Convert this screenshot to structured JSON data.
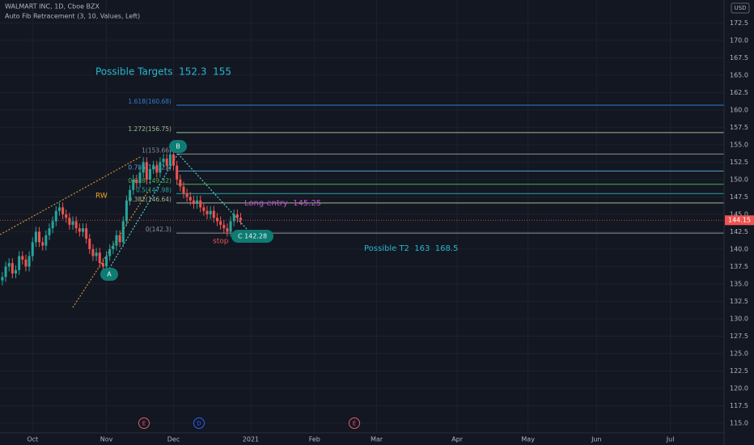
{
  "chart_data": {
    "type": "candlestick",
    "title": "WALMART INC, 1D, Cboe BZX",
    "subtitle": "Auto Fib Retracement (3, 10, Values, Left)",
    "currency": "USD",
    "up_color": "#26a69a",
    "down_color": "#ef5350",
    "open": [
      135.5,
      136,
      137.5,
      138,
      136.5,
      137,
      139,
      138.5,
      137.5,
      139,
      141,
      142.5,
      141,
      140.5,
      142,
      143,
      144,
      145.5,
      146,
      145,
      144.5,
      143.5,
      144,
      143,
      142.5,
      143,
      141.5,
      140,
      139,
      139.5,
      138,
      137.5,
      139,
      140,
      140.5,
      142,
      141,
      144,
      147,
      148.5,
      150,
      149.5,
      151,
      152.5,
      150,
      151.5,
      152,
      151,
      152.5,
      153,
      152,
      153.6,
      152,
      150,
      149,
      148,
      147.5,
      147,
      146.5,
      147,
      146,
      145.5,
      145,
      145.5,
      144.5,
      144,
      143.5,
      143,
      142.5,
      144,
      145,
      144.5
    ],
    "high": [
      136.7,
      138.2,
      138.7,
      138.7,
      137.7,
      139.7,
      139.7,
      139.2,
      139.7,
      141.7,
      143.2,
      143.2,
      141.7,
      142.7,
      143.7,
      144.7,
      146.2,
      146.7,
      146.7,
      145.7,
      145.2,
      144.7,
      144.7,
      143.7,
      143.7,
      143.7,
      142.2,
      140.7,
      140.2,
      140.2,
      138.7,
      139.7,
      140.7,
      141.2,
      142.7,
      142.7,
      144.7,
      147.7,
      149.2,
      150.7,
      150.7,
      151.7,
      153.2,
      153.2,
      152.2,
      152.7,
      152.7,
      153.2,
      153.7,
      153.7,
      154.3,
      154.3,
      152.7,
      150.7,
      149.7,
      148.7,
      148.2,
      147.7,
      147.7,
      147.7,
      146.7,
      146.2,
      146.2,
      146.2,
      145.2,
      144.7,
      144.2,
      143.7,
      144.7,
      145.7,
      145.7,
      145.2
    ],
    "low": [
      134.8,
      135.3,
      136.8,
      135.8,
      135.8,
      136.3,
      137.8,
      136.8,
      136.8,
      138.3,
      140.3,
      140.3,
      139.8,
      139.8,
      141.3,
      142.3,
      143.3,
      144.8,
      144.3,
      143.8,
      142.8,
      142.8,
      142.3,
      141.8,
      141.8,
      140.8,
      139.3,
      138.3,
      138.3,
      137.3,
      136.8,
      136.8,
      138.3,
      139.3,
      139.8,
      140.3,
      140.3,
      143.3,
      146.3,
      147.8,
      148.8,
      148.8,
      150.3,
      149.3,
      149.3,
      150.8,
      150.3,
      150.3,
      151.8,
      151.3,
      151.3,
      151.3,
      149.3,
      148.3,
      147.3,
      146.8,
      146.3,
      145.8,
      145.8,
      145.3,
      144.8,
      144.3,
      144.3,
      143.8,
      143.3,
      142.8,
      142.3,
      141.8,
      141.8,
      143.3,
      143.8,
      143.5
    ],
    "close": [
      136,
      137.5,
      138,
      136.5,
      137,
      139,
      138.5,
      137.5,
      139,
      141,
      142.5,
      141,
      140.5,
      142,
      143,
      144,
      145.5,
      146,
      145,
      144.5,
      143.5,
      144,
      143,
      142.5,
      143,
      141.5,
      140,
      139,
      139.5,
      138,
      137.5,
      139,
      140,
      140.5,
      142,
      141,
      144,
      147,
      148.5,
      150,
      149.5,
      151,
      152.5,
      150,
      151.5,
      152,
      151,
      152.5,
      153,
      152,
      153.6,
      152,
      150,
      149,
      148,
      147.5,
      147,
      146.5,
      147,
      146,
      145.5,
      145,
      145.5,
      144.5,
      144,
      143.5,
      143,
      142.5,
      144,
      145,
      144.5,
      144.15
    ],
    "xlim": [
      -0.7,
      215
    ],
    "xticks": [
      {
        "value": 9,
        "label": "Oct"
      },
      {
        "value": 31,
        "label": "Nov"
      },
      {
        "value": 51,
        "label": "Dec"
      },
      {
        "value": 74,
        "label": "2021"
      },
      {
        "value": 93,
        "label": "Feb"
      },
      {
        "value": 111.5,
        "label": "Mar"
      },
      {
        "value": 135.5,
        "label": "Apr"
      },
      {
        "value": 156.6,
        "label": "May"
      },
      {
        "value": 177,
        "label": "Jun"
      },
      {
        "value": 199,
        "label": "Jul"
      }
    ],
    "ylim": [
      113.6,
      175.8
    ],
    "yticks": [
      {
        "value": 115,
        "label": "115.0"
      },
      {
        "value": 117.5,
        "label": "117.5"
      },
      {
        "value": 120,
        "label": "120.0"
      },
      {
        "value": 122.5,
        "label": "122.5"
      },
      {
        "value": 125,
        "label": "125.0"
      },
      {
        "value": 127.5,
        "label": "127.5"
      },
      {
        "value": 130,
        "label": "130.0"
      },
      {
        "value": 132.5,
        "label": "132.5"
      },
      {
        "value": 135,
        "label": "135.0"
      },
      {
        "value": 137.5,
        "label": "137.5"
      },
      {
        "value": 140,
        "label": "140.0"
      },
      {
        "value": 142.5,
        "label": "142.5"
      },
      {
        "value": 145,
        "label": "145.0"
      },
      {
        "value": 147.5,
        "label": "147.5"
      },
      {
        "value": 150,
        "label": "150.0"
      },
      {
        "value": 152.5,
        "label": "152.5"
      },
      {
        "value": 155,
        "label": "155.0"
      },
      {
        "value": 157.5,
        "label": "157.5"
      },
      {
        "value": 160,
        "label": "160.0"
      },
      {
        "value": 162.5,
        "label": "162.5"
      },
      {
        "value": 165,
        "label": "165.0"
      },
      {
        "value": 167.5,
        "label": "167.5"
      },
      {
        "value": 170,
        "label": "170.0"
      },
      {
        "value": 172.5,
        "label": "172.5"
      }
    ],
    "grid": true,
    "fib_levels": [
      {
        "label": "1.618(160.68)",
        "value": 160.68,
        "color": "#2f7fd0"
      },
      {
        "label": "1.272(156.75)",
        "value": 156.75,
        "color": "#9fbf8f"
      },
      {
        "label": "1(153.66)",
        "value": 153.66,
        "color": "#8a8f99"
      },
      {
        "label": "0.786(151.23)",
        "value": 151.23,
        "color": "#5a9fd0"
      },
      {
        "label": "0.618(149.32)",
        "value": 149.32,
        "color": "#4caf50"
      },
      {
        "label": "0.5(147.98)",
        "value": 147.98,
        "color": "#26a69a"
      },
      {
        "label": "0.382(146.64)",
        "value": 146.64,
        "color": "#a0b890"
      },
      {
        "label": "0(142.3)",
        "value": 142.3,
        "color": "#8a8f99"
      }
    ],
    "annotations": [
      {
        "text": "Possible Targets  152.3  155",
        "color": "#26b6d0"
      },
      {
        "text": "Possible T2  163  168.5",
        "color": "#26b6d0"
      },
      {
        "text": "Long entry  145.25",
        "color": "#c04fc8"
      },
      {
        "text": "RW",
        "color": "#f5a623"
      },
      {
        "text": "stop",
        "color": "#ef5350"
      }
    ],
    "points": [
      "A",
      "B",
      "C 142.28"
    ],
    "events": [
      "E",
      "D",
      "E"
    ]
  }
}
